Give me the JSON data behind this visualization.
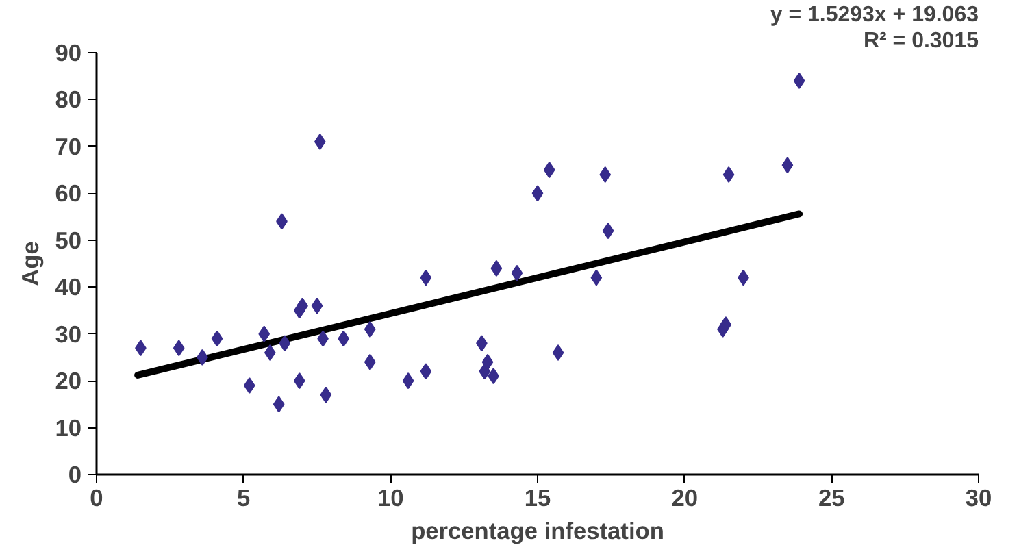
{
  "chart_data": {
    "type": "scatter",
    "xlabel": "percentage infestation",
    "ylabel": "Age",
    "xlim": [
      0,
      30
    ],
    "ylim": [
      0,
      90
    ],
    "xticks": [
      0,
      5,
      10,
      15,
      20,
      25,
      30
    ],
    "yticks": [
      0,
      10,
      20,
      30,
      40,
      50,
      60,
      70,
      80,
      90
    ],
    "grid": false,
    "annotations": [
      "y = 1.5293x + 19.063",
      "R² = 0.3015"
    ],
    "series": [
      {
        "marker": "diamond",
        "color": "#372c8c",
        "x": [
          1.5,
          2.8,
          3.6,
          4.1,
          5.2,
          5.7,
          5.9,
          6.2,
          6.3,
          6.4,
          6.9,
          6.9,
          7.0,
          7.5,
          7.6,
          7.7,
          7.8,
          8.4,
          9.3,
          9.3,
          10.6,
          11.2,
          11.2,
          13.1,
          13.2,
          13.3,
          13.5,
          13.6,
          14.3,
          15.0,
          15.4,
          15.7,
          17.0,
          17.3,
          17.4,
          21.3,
          21.4,
          21.5,
          22.0,
          23.5,
          23.9
        ],
        "values": [
          27,
          27,
          25,
          29,
          19,
          30,
          26,
          15,
          54,
          28,
          20,
          35,
          36,
          36,
          71,
          29,
          17,
          29,
          31,
          24,
          20,
          22,
          42,
          28,
          22,
          24,
          21,
          44,
          43,
          60,
          65,
          26,
          42,
          64,
          52,
          31,
          32,
          64,
          42,
          66,
          84
        ]
      },
      {
        "type": "line",
        "color": "#000000",
        "x": [
          1.4,
          23.9
        ],
        "values": [
          21.2,
          55.6
        ]
      }
    ]
  }
}
